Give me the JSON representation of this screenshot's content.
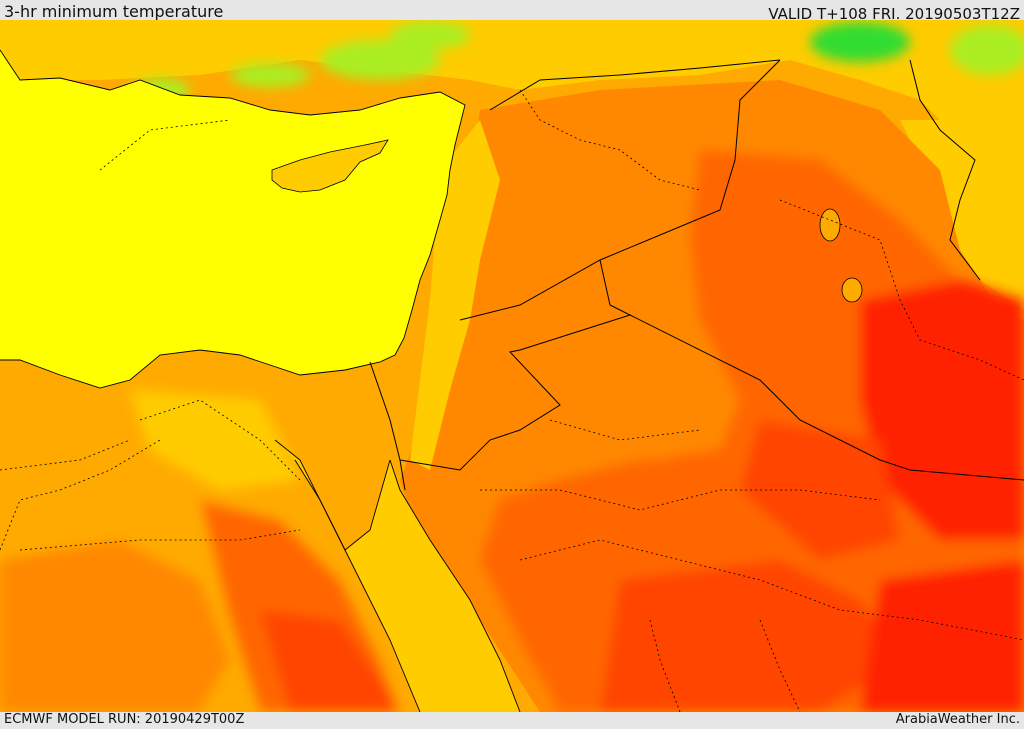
{
  "header": {
    "title": "3-hr minimum temperature",
    "valid": "VALID T+108 FRI. 20190503T12Z"
  },
  "footer": {
    "model_run": "ECMWF MODEL RUN: 20190429T00Z",
    "credit": "ArabiaWeather Inc."
  },
  "map": {
    "palette": {
      "sea": "#ffff00",
      "green": "#33dd33",
      "light_green": "#aaee22",
      "yellow_orange": "#ffcc00",
      "amber": "#ffaa00",
      "orange": "#ff8800",
      "dark_orange": "#ff6600",
      "red_orange": "#ff4400",
      "red": "#ff2200",
      "line": "#000000"
    }
  }
}
